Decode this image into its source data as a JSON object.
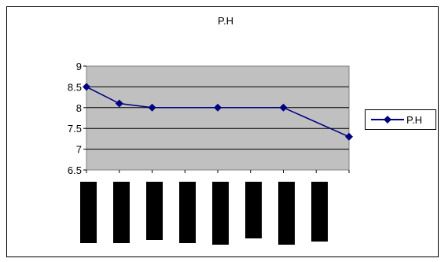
{
  "chart_data": {
    "type": "line",
    "title": "P.H",
    "xlabel": "",
    "ylabel": "",
    "x": [
      0,
      1,
      2,
      3,
      4,
      5,
      6,
      7
    ],
    "series": [
      {
        "name": "P.H",
        "points": [
          {
            "x": 0,
            "y": 8.5
          },
          {
            "x": 1,
            "y": 8.1
          },
          {
            "x": 2,
            "y": 8.0
          },
          {
            "x": 4,
            "y": 8.0
          },
          {
            "x": 6,
            "y": 8.0
          },
          {
            "x": 8,
            "y": 7.3
          }
        ],
        "color": "#000080"
      }
    ],
    "ylim": [
      6.5,
      9
    ],
    "yticks": [
      "6.5",
      "7",
      "7.5",
      "8",
      "8.5",
      "9"
    ],
    "ytick_values": [
      6.5,
      7,
      7.5,
      8,
      8.5,
      9
    ],
    "xlim": [
      0,
      8
    ],
    "grid": true,
    "legend": "right",
    "plot_background": "#c0c0c0",
    "x_category_labels": "redacted (black bars)"
  }
}
